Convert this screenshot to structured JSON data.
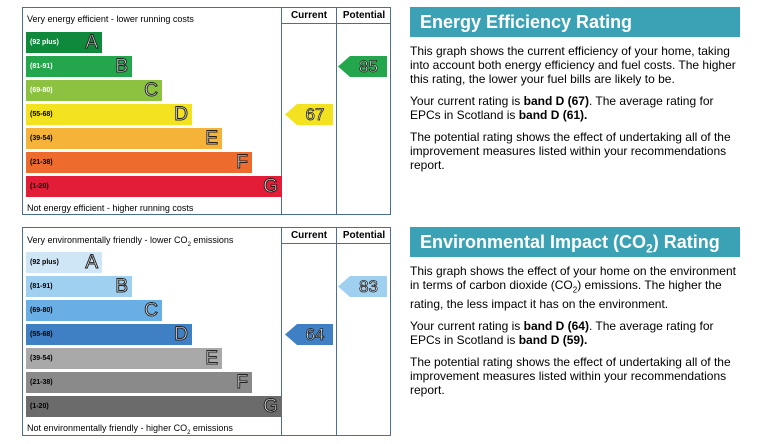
{
  "energy": {
    "top_caption": "Very energy efficient - lower running costs",
    "bottom_caption": "Not energy efficient - higher running costs",
    "current_header": "Current",
    "potential_header": "Potential",
    "bands": [
      {
        "range": "(92 plus)",
        "letter": "A",
        "color": "#0f8a3c",
        "range_color": "#ffffff"
      },
      {
        "range": "(81-91)",
        "letter": "B",
        "color": "#24a74c",
        "range_color": "#ffffff"
      },
      {
        "range": "(69-80)",
        "letter": "C",
        "color": "#8cc23f",
        "range_color": "#ffffff"
      },
      {
        "range": "(55-68)",
        "letter": "D",
        "color": "#f2e21f",
        "range_color": "#000000"
      },
      {
        "range": "(39-54)",
        "letter": "E",
        "color": "#f5b33a",
        "range_color": "#000000"
      },
      {
        "range": "(21-38)",
        "letter": "F",
        "color": "#ec6b2d",
        "range_color": "#000000"
      },
      {
        "range": "(1-20)",
        "letter": "G",
        "color": "#e31d38",
        "range_color": "#000000"
      }
    ],
    "current": {
      "value": "67",
      "band": "D",
      "color": "#f2e21f"
    },
    "potential": {
      "value": "85",
      "band": "B",
      "color": "#24a74c"
    }
  },
  "environment": {
    "top_caption_pre": "Very environmentally friendly - lower CO",
    "top_caption_sub": "2",
    "top_caption_post": " emissions",
    "bottom_caption_pre": "Not environmentally friendly - higher CO",
    "bottom_caption_sub": "2",
    "bottom_caption_post": " emissions",
    "current_header": "Current",
    "potential_header": "Potential",
    "bands": [
      {
        "range": "(92 plus)",
        "letter": "A",
        "color": "#cfe6f6",
        "range_color": "#000000"
      },
      {
        "range": "(81-91)",
        "letter": "B",
        "color": "#9fd0f0",
        "range_color": "#000000"
      },
      {
        "range": "(69-80)",
        "letter": "C",
        "color": "#6aaee6",
        "range_color": "#000000"
      },
      {
        "range": "(55-68)",
        "letter": "D",
        "color": "#3f7fc3",
        "range_color": "#000000"
      },
      {
        "range": "(39-54)",
        "letter": "E",
        "color": "#a9a9a9",
        "range_color": "#000000"
      },
      {
        "range": "(21-38)",
        "letter": "F",
        "color": "#8a8a8a",
        "range_color": "#000000"
      },
      {
        "range": "(1-20)",
        "letter": "G",
        "color": "#6b6b6b",
        "range_color": "#000000"
      }
    ],
    "current": {
      "value": "64",
      "band": "D",
      "color": "#3f7fc3"
    },
    "potential": {
      "value": "83",
      "band": "B",
      "color": "#9fd0f0"
    }
  },
  "energy_panel": {
    "title": "Energy Efficiency Rating",
    "p1": "This graph shows the current efficiency of your home, taking into account both energy efficiency and fuel costs. The higher this rating, the lower your fuel bills are likely to be.",
    "p2_pre": "Your current rating is ",
    "p2_b1": "band D (67)",
    "p2_mid": ". The average rating for EPCs in Scotland is ",
    "p2_b2": "band D (61).",
    "p3": "The potential rating shows the effect of undertaking all of the improvement measures listed within your recommendations report."
  },
  "env_panel": {
    "title_pre": "Environmental Impact (CO",
    "title_sub": "2",
    "title_post": ") Rating",
    "p1_pre": "This graph shows the effect of your home on the environment in terms of carbon dioxide (CO",
    "p1_sub": "2",
    "p1_post": ") emissions. The higher the rating, the less impact it has on the environment.",
    "p2_pre": "Your current rating is ",
    "p2_b1": "band D (64)",
    "p2_mid": ". The average rating for EPCs in Scotland is ",
    "p2_b2": "band D (59).",
    "p3": "The potential rating shows the effect of undertaking all of the improvement measures listed within your recommendations report."
  }
}
